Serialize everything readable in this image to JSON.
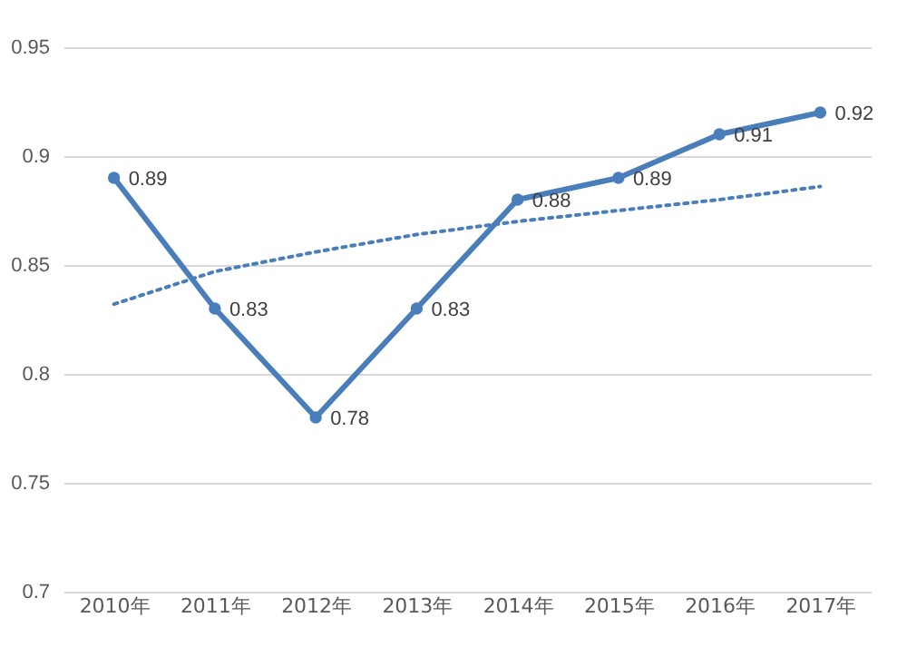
{
  "chart_data": {
    "type": "line",
    "categories": [
      "2010年",
      "2011年",
      "2012年",
      "2013年",
      "2014年",
      "2015年",
      "2016年",
      "2017年"
    ],
    "series": [
      {
        "color": "#4a7ebb",
        "values": [
          0.89,
          0.83,
          0.78,
          0.83,
          0.88,
          0.89,
          0.91,
          0.92
        ],
        "value_labels": [
          "0.89",
          "0.83",
          "0.78",
          "0.83",
          "0.88",
          "0.89",
          "0.91",
          "0.92"
        ]
      },
      {
        "type": "line",
        "line_style": "dotted",
        "marker": "none",
        "color": "#4a7ebb",
        "values": [
          0.832,
          0.847,
          0.856,
          0.864,
          0.87,
          0.875,
          0.88,
          0.886
        ]
      }
    ],
    "ylim": [
      0.7,
      0.95
    ],
    "yticks": [
      0.7,
      0.75,
      0.8,
      0.85,
      0.9,
      0.95
    ],
    "grid": "y",
    "marker": "circle",
    "line_style": "solid"
  }
}
